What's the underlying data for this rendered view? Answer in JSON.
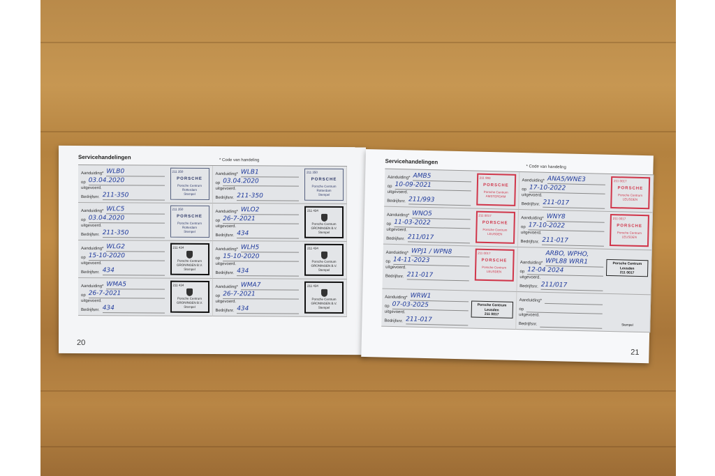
{
  "left_page": {
    "title": "Servicehandelingen",
    "code_note": "* Code van handeling",
    "page_number": "20",
    "labels": {
      "aanduiding": "Aanduiding*",
      "op": "op",
      "uitgevoerd": "uitgevoerd.",
      "bedrijfsnr": "Bedrijfsnr.",
      "stempel": "Stempel"
    },
    "entries": [
      {
        "code": "WLB0",
        "date": "03.04.2020",
        "company": "211-350",
        "stamp": {
          "type": "rot",
          "lines": [
            "211   350",
            "PORSCHE",
            "Porsche Centrum Rotterdam",
            "Stempel"
          ]
        }
      },
      {
        "code": "WLB1",
        "date": "03.04.2020",
        "company": "211-350",
        "stamp": {
          "type": "rot",
          "lines": [
            "211   350",
            "PORSCHE",
            "Porsche Centrum Rotterdam",
            "Stempel"
          ]
        }
      },
      {
        "code": "WLC5",
        "date": "03.04.2020",
        "company": "211-350",
        "stamp": {
          "type": "rot",
          "lines": [
            "211   350",
            "PORSCHE",
            "Porsche Centrum Rotterdam",
            "Stempel"
          ]
        }
      },
      {
        "code": "WLO2",
        "date": "26-7-2021",
        "company": "434",
        "stamp": {
          "type": "gro",
          "lines": [
            "211   434",
            "Porsche Centrum",
            "GRONINGEN B.V.",
            "Stempel"
          ]
        }
      },
      {
        "code": "WLG2",
        "date": "15-10-2020",
        "company": "434",
        "stamp": {
          "type": "gro",
          "lines": [
            "211   434",
            "Porsche Centrum",
            "GRONINGEN B.V.",
            "Stempel"
          ]
        }
      },
      {
        "code": "WLH5",
        "date": "15-10-2020",
        "company": "434",
        "stamp": {
          "type": "gro",
          "lines": [
            "211   434",
            "Porsche Centrum",
            "GRONINGEN B.V.",
            "Stempel"
          ]
        }
      },
      {
        "code": "WMA5",
        "date": "26-7-2021",
        "company": "434",
        "stamp": {
          "type": "gro",
          "lines": [
            "211   434",
            "Porsche Centrum",
            "GRONINGEN B.V.",
            "Stempel"
          ]
        }
      },
      {
        "code": "WMA7",
        "date": "26-7-2021",
        "company": "434",
        "stamp": {
          "type": "gro",
          "lines": [
            "211   434",
            "Porsche Centrum",
            "GRONINGEN B.V.",
            "Stempel"
          ]
        }
      }
    ]
  },
  "right_page": {
    "title": "Servicehandelingen",
    "code_note": "* Code van handeling",
    "page_number": "21",
    "labels": {
      "aanduiding": "Aanduiding*",
      "op": "op",
      "uitgevoerd": "uitgevoerd.",
      "bedrijfsnr": "Bedrijfsnr.",
      "stempel": "Stempel"
    },
    "entries": [
      {
        "code": "AMB5",
        "date": "10-09-2021",
        "company": "211/993",
        "stamp": {
          "type": "red",
          "lines": [
            "211   993",
            "PORSCHE",
            "Porsche Centrum",
            "AMSTERDAM"
          ]
        }
      },
      {
        "code": "ANA5/WNE3",
        "date": "17-10-2022",
        "company": "211-017",
        "stamp": {
          "type": "red",
          "lines": [
            "211   0017",
            "PORSCHE",
            "Porsche Centrum",
            "LEUSDEN"
          ]
        }
      },
      {
        "code": "WNO5",
        "date": "11-03-2022",
        "company": "211/017",
        "stamp": {
          "type": "red",
          "lines": [
            "211   0017",
            "PORSCHE",
            "Porsche Centrum",
            "LEUSDEN"
          ]
        }
      },
      {
        "code": "WNY8",
        "date": "17-10-2022",
        "company": "211-017",
        "stamp": {
          "type": "red",
          "lines": [
            "211   0017",
            "PORSCHE",
            "Porsche Centrum",
            "LEUSDEN"
          ]
        }
      },
      {
        "code": "WPJ1 / WPN8",
        "date": "14-11-2023",
        "company": "211-017",
        "stamp": {
          "type": "red",
          "lines": [
            "211   0017",
            "PORSCHE",
            "Porsche Centrum",
            "LEUSDEN"
          ]
        }
      },
      {
        "code": "ARBO, WPHO, WPL88 WRR1",
        "date": "12-04 2024",
        "company": "211/017",
        "stamp": {
          "type": "box",
          "lines": [
            "Porsche Centrum",
            "Leusden",
            "211   0017",
            ""
          ]
        }
      },
      {
        "code": "WRW1",
        "date": "07-03-2025",
        "company": "211-017",
        "stamp": {
          "type": "box",
          "lines": [
            "Porsche Centrum",
            "Leusden",
            "211   0017",
            ""
          ]
        }
      },
      {
        "code": "",
        "date": "",
        "company": "",
        "stamp": {
          "type": "none",
          "lines": [
            "",
            "",
            "",
            "Stempel"
          ]
        }
      }
    ]
  }
}
